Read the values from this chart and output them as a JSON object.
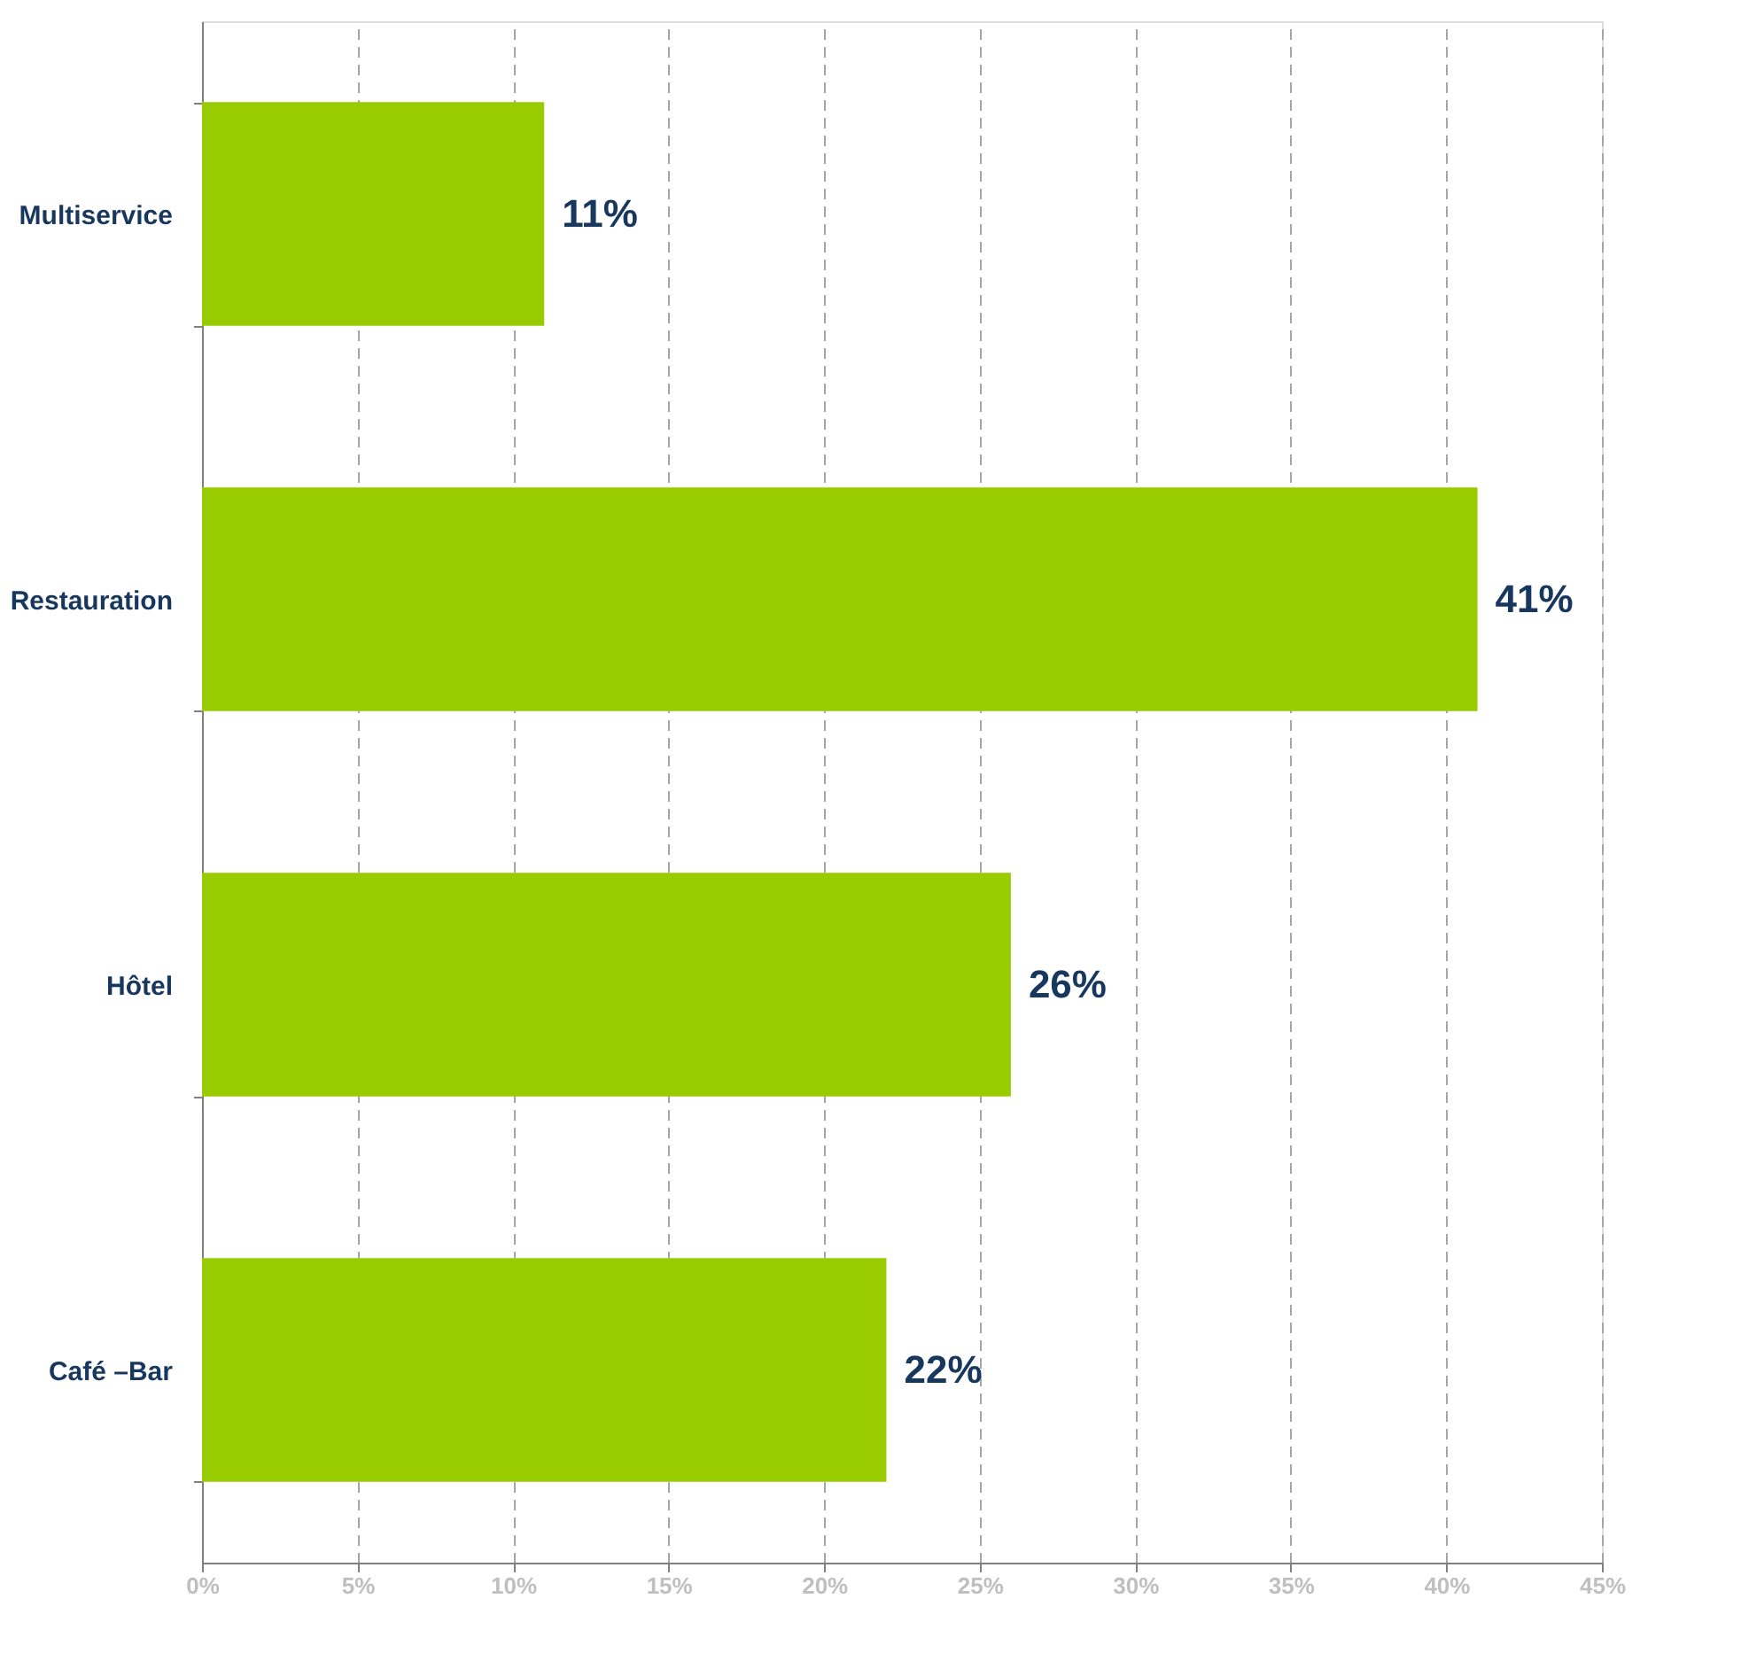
{
  "chart_data": {
    "type": "bar",
    "orientation": "horizontal",
    "categories": [
      "Multiservice",
      "Restauration",
      "Hôtel",
      "Café –Bar"
    ],
    "values": [
      11,
      41,
      26,
      22
    ],
    "color": "#99cc00",
    "value_labels": [
      "11%",
      "41%",
      "26%",
      "22%"
    ],
    "xlim": [
      0,
      45
    ],
    "xticks": [
      {
        "value": 0,
        "label": "0%"
      },
      {
        "value": 5,
        "label": "5%"
      },
      {
        "value": 10,
        "label": "10%"
      },
      {
        "value": 15,
        "label": "15%"
      },
      {
        "value": 20,
        "label": "20%"
      },
      {
        "value": 25,
        "label": "25%"
      },
      {
        "value": 30,
        "label": "30%"
      },
      {
        "value": 35,
        "label": "35%"
      },
      {
        "value": 40,
        "label": "40%"
      },
      {
        "value": 45,
        "label": "45%"
      }
    ],
    "grid": "x"
  }
}
